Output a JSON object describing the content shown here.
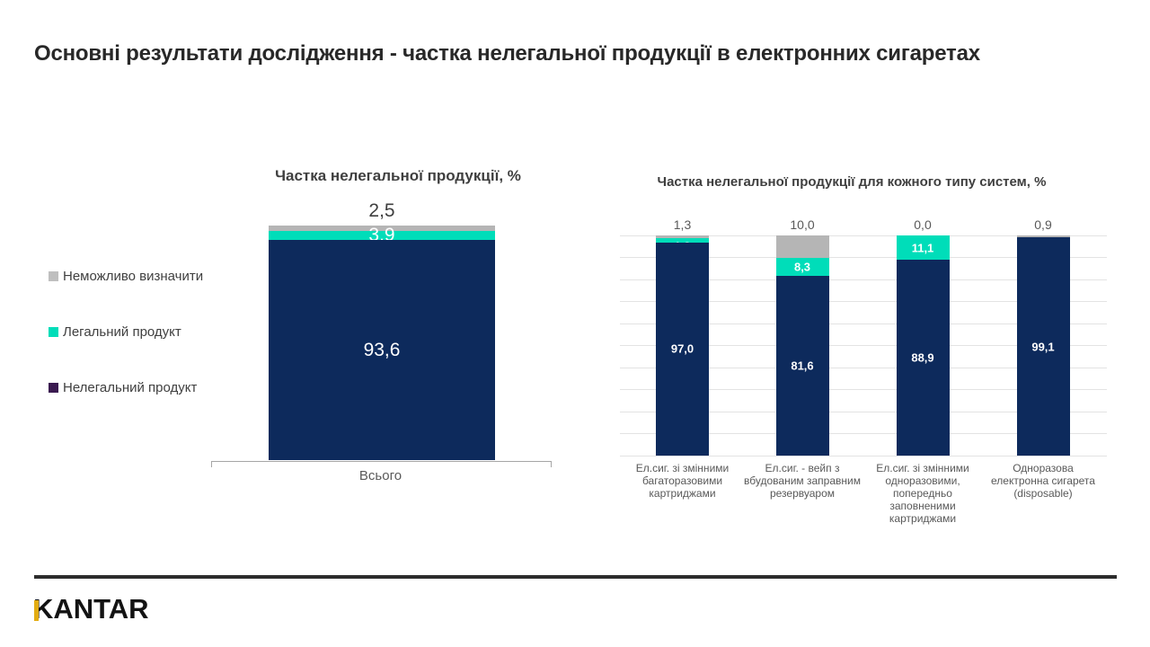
{
  "slide_title": "Основні результати дослідження - частка нелегальної продукції в електронних сигаретах",
  "colors": {
    "navy": "#0D2A5C",
    "teal": "#00DDB9",
    "segment_gray": "#B5B5B5",
    "legend_gray": "#BFBFBF",
    "legend_purple": "#3A1A50",
    "gridline": "#E3E3E3",
    "axis": "#A6A6A6",
    "label_gray": "#595959",
    "title_gray": "#3F3F3F",
    "divider": "#2D2D2D",
    "logo_yellow": "#E3AC12"
  },
  "legend": {
    "position": "left",
    "items": [
      {
        "label": "Неможливо визначити",
        "color": "#BFBFBF"
      },
      {
        "label": "Легальний продукт",
        "color": "#00DDB9"
      },
      {
        "label": "Нелегальний продукт",
        "color": "#3A1A50"
      }
    ]
  },
  "chart_data": [
    {
      "type": "bar",
      "stacked": true,
      "title": "Частка нелегальної продукції, %",
      "categories": [
        "Всього"
      ],
      "ylim": [
        0,
        100
      ],
      "grid": false,
      "legend_position": "left",
      "series": [
        {
          "key": "undetermined",
          "name": "Неможливо визначити",
          "color": "#B5B5B5",
          "values": [
            2.5
          ],
          "labels": [
            "2,5"
          ],
          "label_position": "above"
        },
        {
          "key": "legal",
          "name": "Легальний продукт",
          "color": "#00DDB9",
          "values": [
            3.9
          ],
          "labels": [
            "3,9"
          ],
          "label_position": "inside"
        },
        {
          "key": "illegal",
          "name": "Нелегальний продукт",
          "color": "#0D2A5C",
          "values": [
            93.6
          ],
          "labels": [
            "93,6"
          ],
          "label_position": "inside"
        }
      ]
    },
    {
      "type": "bar",
      "stacked": true,
      "title": "Частка нелегальної продукції для кожного типу систем, %",
      "categories": [
        "Ел.сиг. зі змінними багаторазовими картриджами",
        "Ел.сиг. - вейп з вбудованим заправним резервуаром",
        "Ел.сиг. зі змінними одноразовими, попередньо заповненими картриджами",
        "Одноразова електронна сигарета (disposable)"
      ],
      "ylim": [
        0,
        100
      ],
      "grid": true,
      "gridline_step": 10,
      "series": [
        {
          "key": "undetermined",
          "name": "Неможливо визначити",
          "color": "#B5B5B5",
          "values": [
            1.3,
            10.0,
            0.0,
            0.9
          ],
          "labels": [
            "1,3",
            "10,0",
            "0,0",
            "0,9"
          ],
          "label_position": "above"
        },
        {
          "key": "legal",
          "name": "Легальний продукт",
          "color": "#00DDB9",
          "values": [
            1.8,
            8.3,
            11.1,
            0.0
          ],
          "labels": [
            "1,8",
            "8,3",
            "11,1",
            "0,0"
          ],
          "label_position": "inside"
        },
        {
          "key": "illegal",
          "name": "Нелегальний продукт",
          "color": "#0D2A5C",
          "values": [
            97.0,
            81.6,
            88.9,
            99.1
          ],
          "labels": [
            "97,0",
            "81,6",
            "88,9",
            "99,1"
          ],
          "label_position": "inside"
        }
      ]
    }
  ],
  "footer": {
    "brand": "KANTAR"
  }
}
